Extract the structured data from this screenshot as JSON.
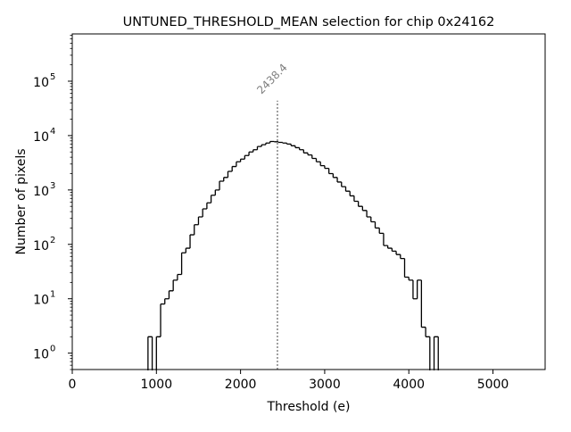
{
  "chart_data": {
    "type": "histogram",
    "title": "UNTUNED_THRESHOLD_MEAN selection for chip 0x24162",
    "xlabel": "Threshold (e)",
    "ylabel": "Number of pixels",
    "xlim": [
      0,
      5620
    ],
    "ylim": [
      0.5,
      740000
    ],
    "yscale": "log",
    "x_ticks": [
      0,
      1000,
      2000,
      3000,
      4000,
      5000
    ],
    "x_tick_labels": [
      "0",
      "1000",
      "2000",
      "3000",
      "4000",
      "5000"
    ],
    "y_ticks": [
      1,
      10,
      100,
      1000,
      10000,
      100000
    ],
    "y_tick_labels": [
      "10^0",
      "10^1",
      "10^2",
      "10^3",
      "10^4",
      "10^5"
    ],
    "bin_width": 50,
    "bin_start": 900,
    "counts": [
      2,
      0,
      2,
      8,
      10,
      14,
      22,
      28,
      70,
      85,
      150,
      230,
      320,
      450,
      580,
      800,
      1000,
      1450,
      1700,
      2200,
      2700,
      3300,
      3700,
      4300,
      5000,
      5500,
      6300,
      6800,
      7300,
      7800,
      7700,
      7500,
      7300,
      7000,
      6500,
      6000,
      5500,
      4800,
      4400,
      3800,
      3300,
      2800,
      2500,
      2000,
      1700,
      1400,
      1150,
      950,
      780,
      620,
      500,
      420,
      320,
      260,
      200,
      160,
      95,
      85,
      75,
      65,
      55,
      25,
      22,
      10,
      22,
      3,
      2,
      0,
      2
    ],
    "mean_line": {
      "x": 2438.4,
      "y_top": 44000,
      "label": "2438.4",
      "color": "#808080"
    },
    "line_color": "#000000",
    "grid": false
  }
}
